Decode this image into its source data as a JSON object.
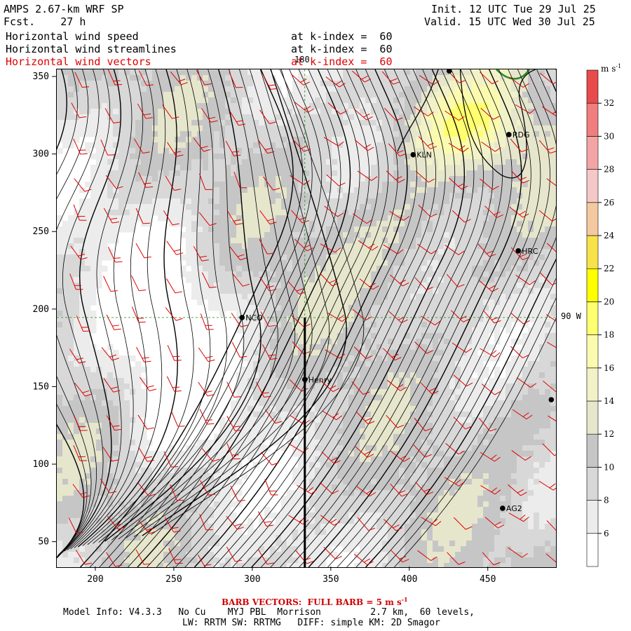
{
  "header": {
    "model": "AMPS 2.67-km WRF SP",
    "fcst_label": "Fcst.",
    "fcst_value": "27 h",
    "init": "Init. 12 UTC Tue 29 Jul 25",
    "valid": "Valid. 15 UTC Wed 30 Jul 25",
    "fields": [
      {
        "name": "Horizontal wind speed",
        "level": "at k-index =  60",
        "color": "#000000"
      },
      {
        "name": "Horizontal wind streamlines",
        "level": "at k-index =  60",
        "color": "#000000"
      },
      {
        "name": "Horizontal wind vectors",
        "level": "at k-index =  60",
        "color": "#e00000"
      }
    ]
  },
  "map": {
    "meridian_label": "180",
    "parallel_label": "90 W",
    "stations": [
      {
        "id": "NCO",
        "x": 293,
        "y": 195
      },
      {
        "id": "Henry",
        "x": 333,
        "y": 155
      },
      {
        "id": "KLN",
        "x": 402,
        "y": 300
      },
      {
        "id": "RDG",
        "x": 463,
        "y": 313
      },
      {
        "id": "HRC",
        "x": 469,
        "y": 238
      },
      {
        "id": "AG2",
        "x": 459,
        "y": 72
      },
      {
        "id": "",
        "x": 425,
        "y": 354
      },
      {
        "id": "",
        "x": 490,
        "y": 142
      }
    ],
    "cross_section": {
      "x": 333,
      "y_from": 34,
      "y_to": 195
    }
  },
  "chart_data": {
    "type": "heatmap",
    "title": "Horizontal wind speed",
    "xlim": [
      175,
      493
    ],
    "ylim": [
      34,
      355
    ],
    "x_ticks": [
      200,
      250,
      300,
      350,
      400,
      450
    ],
    "y_ticks": [
      50,
      100,
      150,
      200,
      250,
      300,
      350
    ],
    "colorbar": {
      "units": "m s",
      "units_exp": "-1",
      "levels": [
        6,
        8,
        10,
        12,
        14,
        16,
        18,
        20,
        22,
        24,
        26,
        28,
        30,
        32
      ],
      "colors": [
        "#ffffff",
        "#ececec",
        "#d8d8d8",
        "#c6c6c6",
        "#e6e6cc",
        "#f2f2c8",
        "#fbfbb0",
        "#ffff70",
        "#ffff00",
        "#f8e24a",
        "#f5c9a0",
        "#f5c8c8",
        "#f3a5a5",
        "#f07e7e",
        "#e84b4b"
      ]
    }
  },
  "barb_note": {
    "text": "BARB VECTORS:  FULL BARB = 5 m s",
    "exp": "-1"
  },
  "footer": {
    "line1": "Model Info: V4.3.3   No Cu    MYJ PBL  Morrison         2.7 km,  60 levels,",
    "line2": "LW: RRTM SW: RRTMG   DIFF: simple KM: 2D Smagor"
  }
}
